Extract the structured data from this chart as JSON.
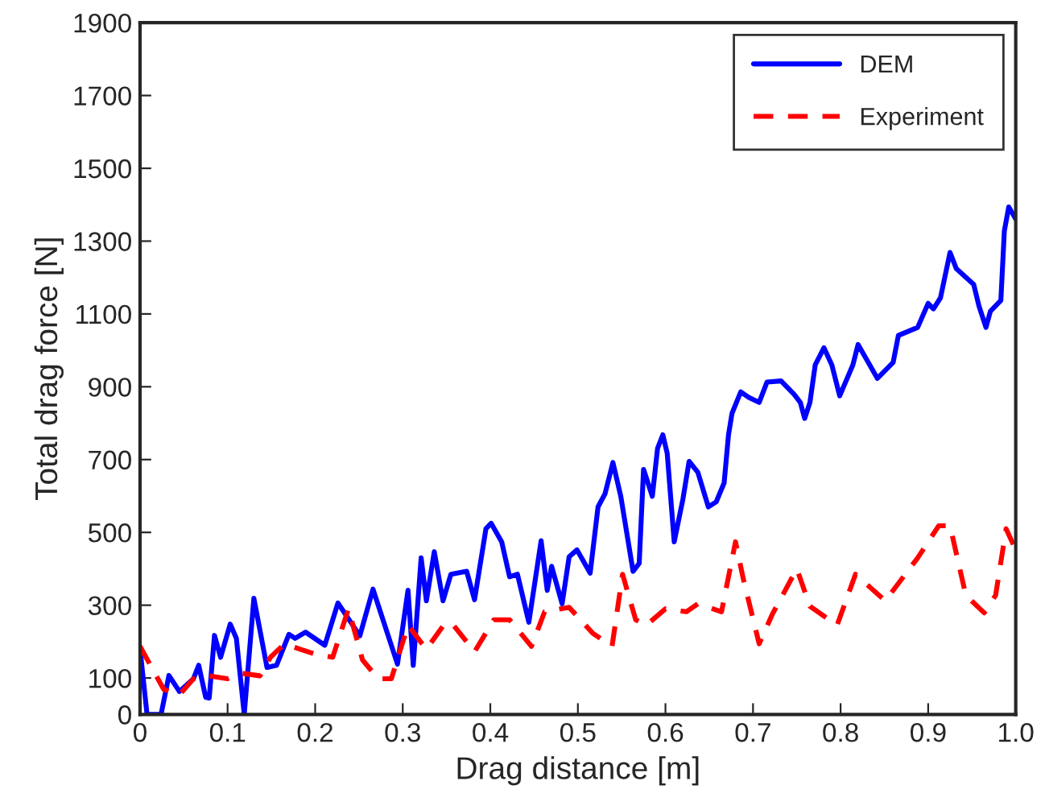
{
  "chart_data": {
    "type": "line",
    "xlabel": "Drag distance [m]",
    "ylabel": "Total drag force [N]",
    "xlim": [
      0,
      1.0
    ],
    "ylim": [
      0,
      1900
    ],
    "xticks": [
      0,
      0.1,
      0.2,
      0.3,
      0.4,
      0.5,
      0.6,
      0.7,
      0.8,
      0.9,
      {
        "value": 1.0,
        "label": "1.0"
      }
    ],
    "yticks": [
      0,
      100,
      300,
      500,
      700,
      900,
      1100,
      1300,
      1500,
      1700,
      1900
    ],
    "grid": false,
    "legend": "top right",
    "series": [
      {
        "name": "DEM",
        "color": "#0000ff",
        "line_style": "solid",
        "x": [
          0,
          0.008,
          0.024,
          0.033,
          0.045,
          0.061,
          0.067,
          0.075,
          0.079,
          0.085,
          0.092,
          0.103,
          0.11,
          0.119,
          0.13,
          0.145,
          0.156,
          0.17,
          0.177,
          0.189,
          0.211,
          0.226,
          0.251,
          0.266,
          0.294,
          0.306,
          0.312,
          0.321,
          0.327,
          0.336,
          0.346,
          0.355,
          0.373,
          0.382,
          0.395,
          0.401,
          0.413,
          0.422,
          0.431,
          0.444,
          0.458,
          0.465,
          0.47,
          0.482,
          0.49,
          0.499,
          0.514,
          0.523,
          0.531,
          0.54,
          0.549,
          0.563,
          0.57,
          0.575,
          0.585,
          0.591,
          0.597,
          0.602,
          0.61,
          0.62,
          0.627,
          0.637,
          0.649,
          0.658,
          0.667,
          0.672,
          0.676,
          0.686,
          0.695,
          0.707,
          0.716,
          0.732,
          0.747,
          0.754,
          0.759,
          0.765,
          0.771,
          0.781,
          0.79,
          0.799,
          0.814,
          0.82,
          0.828,
          0.842,
          0.86,
          0.866,
          0.888,
          0.9,
          0.906,
          0.914,
          0.925,
          0.932,
          0.952,
          0.958,
          0.966,
          0.971,
          0.983,
          0.987,
          0.992,
          1.0
        ],
        "values": [
          180,
          0,
          0,
          107,
          63,
          98,
          135,
          47,
          45,
          217,
          157,
          248,
          209,
          0,
          319,
          129,
          135,
          220,
          209,
          226,
          190,
          306,
          216,
          344,
          138,
          341,
          135,
          430,
          312,
          447,
          312,
          385,
          393,
          315,
          510,
          525,
          474,
          378,
          385,
          253,
          477,
          341,
          407,
          304,
          433,
          452,
          388,
          570,
          606,
          692,
          599,
          393,
          415,
          673,
          599,
          731,
          768,
          717,
          474,
          592,
          695,
          665,
          570,
          584,
          636,
          768,
          827,
          886,
          871,
          857,
          913,
          916,
          879,
          857,
          813,
          857,
          960,
          1007,
          960,
          875,
          960,
          1016,
          982,
          923,
          967,
          1041,
          1063,
          1129,
          1114,
          1144,
          1269,
          1225,
          1181,
          1122,
          1063,
          1107,
          1137,
          1328,
          1394,
          1361
        ]
      },
      {
        "name": "Experiment",
        "color": "#ff0000",
        "line_style": "dashed",
        "x": [
          0,
          0.027,
          0.045,
          0.061,
          0.079,
          0.1,
          0.116,
          0.137,
          0.149,
          0.165,
          0.183,
          0.202,
          0.22,
          0.238,
          0.254,
          0.272,
          0.287,
          0.306,
          0.327,
          0.349,
          0.358,
          0.382,
          0.404,
          0.422,
          0.447,
          0.462,
          0.49,
          0.517,
          0.539,
          0.551,
          0.566,
          0.578,
          0.6,
          0.624,
          0.637,
          0.664,
          0.68,
          0.689,
          0.707,
          0.722,
          0.75,
          0.765,
          0.796,
          0.817,
          0.851,
          0.888,
          0.912,
          0.925,
          0.943,
          0.964,
          0.977,
          0.989,
          1.0
        ],
        "values": [
          187,
          69,
          54,
          98,
          106,
          98,
          113,
          106,
          157,
          194,
          179,
          164,
          157,
          290,
          150,
          98,
          98,
          245,
          179,
          253,
          245,
          172,
          260,
          260,
          187,
          282,
          294,
          223,
          187,
          385,
          260,
          245,
          290,
          282,
          304,
          282,
          474,
          371,
          194,
          275,
          400,
          297,
          245,
          385,
          312,
          430,
          518,
          518,
          327,
          279,
          327,
          510,
          452
        ]
      }
    ]
  }
}
